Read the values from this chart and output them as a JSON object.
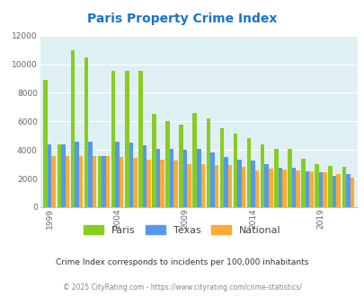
{
  "title": "Paris Property Crime Index",
  "title_color": "#1874CD",
  "years": [
    1999,
    2000,
    2001,
    2002,
    2003,
    2004,
    2005,
    2006,
    2007,
    2008,
    2009,
    2010,
    2011,
    2012,
    2013,
    2014,
    2015,
    2016,
    2017,
    2018,
    2019,
    2020,
    2021
  ],
  "paris": [
    8900,
    4400,
    11000,
    10500,
    3600,
    9500,
    9500,
    9500,
    6500,
    6000,
    5750,
    6600,
    6200,
    5500,
    5150,
    4850,
    4400,
    4050,
    4050,
    3400,
    3000,
    2900,
    2850
  ],
  "texas": [
    4400,
    4400,
    4550,
    4600,
    3550,
    4600,
    4500,
    4300,
    4050,
    4100,
    4000,
    4050,
    3800,
    3500,
    3350,
    3250,
    3000,
    2750,
    2750,
    2500,
    2450,
    2200,
    2350
  ],
  "national": [
    3600,
    3600,
    3600,
    3550,
    3550,
    3500,
    3450,
    3350,
    3300,
    3250,
    3000,
    3000,
    2950,
    2950,
    2800,
    2600,
    2700,
    2650,
    2550,
    2500,
    2450,
    2300,
    2050
  ],
  "paris_color": "#88CC22",
  "texas_color": "#5599EE",
  "national_color": "#FFAA33",
  "bg_color": "#DFF0F5",
  "ylim": [
    0,
    12000
  ],
  "yticks": [
    0,
    2000,
    4000,
    6000,
    8000,
    10000,
    12000
  ],
  "xtick_labels": [
    "1999",
    "2004",
    "2009",
    "2014",
    "2019"
  ],
  "xtick_positions": [
    0,
    5,
    10,
    15,
    20
  ],
  "footnote1": "Crime Index corresponds to incidents per 100,000 inhabitants",
  "footnote2": "© 2025 CityRating.com - https://www.cityrating.com/crime-statistics/",
  "footnote1_color": "#333333",
  "footnote2_color": "#888888"
}
